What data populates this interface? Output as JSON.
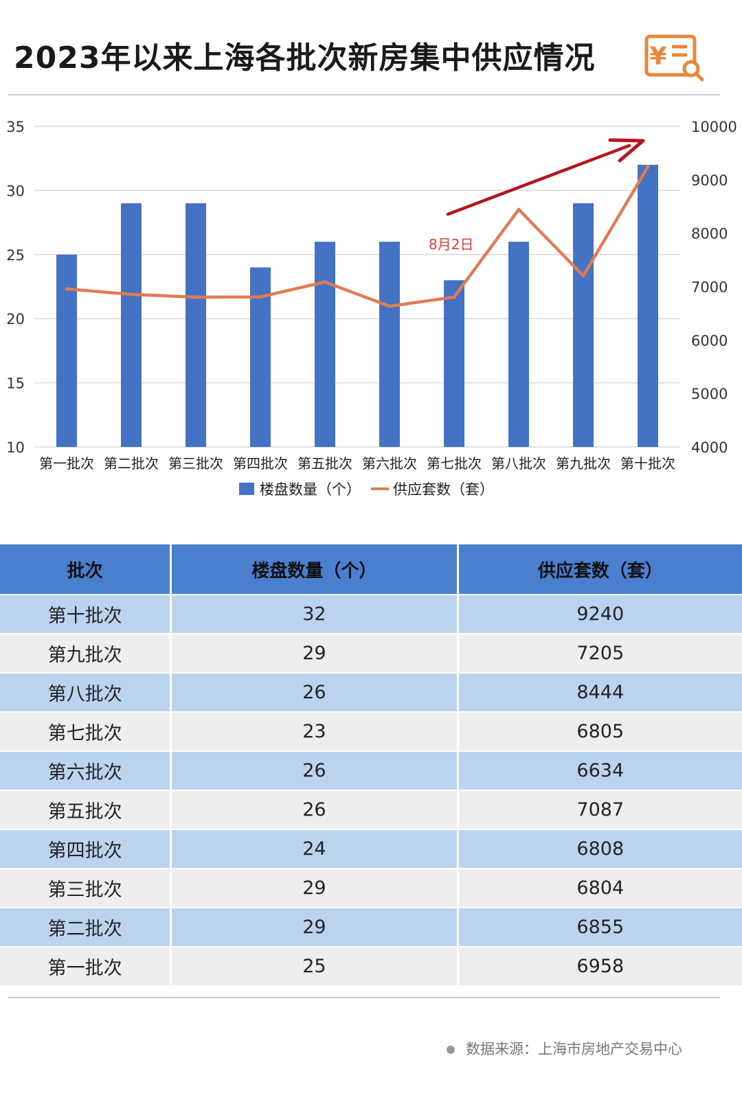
{
  "title": "2023年以来上海各批次新房集中供应情况",
  "logo": {
    "icon": "yuan-document-search-icon",
    "symbol": "¥",
    "color": "#e8873a"
  },
  "chart_data": {
    "type": "bar",
    "categories": [
      "第一批次",
      "第二批次",
      "第三批次",
      "第四批次",
      "第五批次",
      "第六批次",
      "第七批次",
      "第八批次",
      "第九批次",
      "第十批次"
    ],
    "series": [
      {
        "name": "楼盘数量（个）",
        "type": "bar",
        "axis": "left",
        "color": "#4472c4",
        "values": [
          25,
          29,
          29,
          24,
          26,
          26,
          23,
          26,
          29,
          32
        ]
      },
      {
        "name": "供应套数（套）",
        "type": "line",
        "axis": "right",
        "color": "#e07b53",
        "values": [
          6958,
          6855,
          6804,
          6808,
          7087,
          6634,
          6805,
          8444,
          7205,
          9240
        ]
      }
    ],
    "ylim_left": [
      10,
      35
    ],
    "yticks_left": [
      10,
      15,
      20,
      25,
      30,
      35
    ],
    "ylim_right": [
      4000,
      10000
    ],
    "yticks_right": [
      4000,
      5000,
      6000,
      7000,
      8000,
      9000,
      10000
    ],
    "grid": true,
    "legend_position": "bottom",
    "annotation": {
      "text": "8月2日",
      "color": "#d9403a"
    },
    "trend_arrow_color": "#b8141c"
  },
  "table": {
    "headers": [
      "批次",
      "楼盘数量（个）",
      "供应套数（套）"
    ],
    "rows": [
      [
        "第十批次",
        "32",
        "9240"
      ],
      [
        "第九批次",
        "29",
        "7205"
      ],
      [
        "第八批次",
        "26",
        "8444"
      ],
      [
        "第七批次",
        "23",
        "6805"
      ],
      [
        "第六批次",
        "26",
        "6634"
      ],
      [
        "第五批次",
        "26",
        "7087"
      ],
      [
        "第四批次",
        "24",
        "6808"
      ],
      [
        "第三批次",
        "29",
        "6804"
      ],
      [
        "第二批次",
        "29",
        "6855"
      ],
      [
        "第一批次",
        "25",
        "6958"
      ]
    ]
  },
  "source": "数据来源：上海市房地产交易中心"
}
